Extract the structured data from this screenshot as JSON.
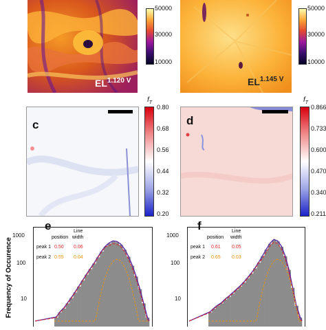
{
  "panel_a": {
    "el_base": "EL",
    "el_sup": "1.120 V"
  },
  "panel_b": {
    "el_base": "EL",
    "el_sup": "1.145 V"
  },
  "colorbar_top_left": {
    "ticks": [
      "50000",
      "30000",
      "10000"
    ]
  },
  "colorbar_top_right": {
    "ticks": [
      "50000",
      "30000",
      "10000"
    ]
  },
  "panel_c": {
    "letter": "c",
    "ft_base": "f",
    "ft_sub": "T",
    "ticks": [
      "0.80",
      "0.68",
      "0.56",
      "0.44",
      "0.32",
      "0.20"
    ]
  },
  "panel_d": {
    "letter": "d",
    "ft_base": "f",
    "ft_sub": "T",
    "ticks": [
      "0.866",
      "0.733",
      "0.600",
      "0.470",
      "0.340",
      "0.211"
    ]
  },
  "panel_e": {
    "letter": "e",
    "header_position": "position",
    "header_linewidth_1": "Line",
    "header_linewidth_2": "width",
    "rows": [
      {
        "label": "peak 1",
        "position": "0.50",
        "width": "0.06",
        "color": "#d62728"
      },
      {
        "label": "peak 2",
        "position": "0.55",
        "width": "0.04",
        "color": "#e8900c"
      }
    ],
    "y_ticks": [
      "1000",
      "100",
      "10"
    ],
    "ylabel": "Frequency of Occurence"
  },
  "panel_f": {
    "letter": "f",
    "header_position": "position",
    "header_linewidth_1": "Line",
    "header_linewidth_2": "width",
    "rows": [
      {
        "label": "peak 1",
        "position": "0.61",
        "width": "0.05",
        "color": "#d62728"
      },
      {
        "label": "peak 2",
        "position": "0.65",
        "width": "0.03",
        "color": "#e8900c"
      }
    ],
    "y_ticks": [
      "1000",
      "100",
      "10"
    ]
  },
  "chart_data": [
    {
      "type": "bar",
      "panel": "e",
      "yscale": "log",
      "ylabel": "Frequency of Occurence",
      "peaks": [
        {
          "name": "peak 1",
          "position": 0.5,
          "line_width": 0.06
        },
        {
          "name": "peak 2",
          "position": 0.55,
          "line_width": 0.04
        }
      ],
      "series": [
        {
          "values": [
            2,
            3,
            4,
            6,
            9,
            14,
            22,
            35,
            55,
            85,
            130,
            210,
            330,
            480,
            620,
            720,
            680,
            560,
            380,
            220,
            110,
            48,
            18,
            6,
            2
          ]
        }
      ]
    },
    {
      "type": "bar",
      "panel": "f",
      "yscale": "log",
      "peaks": [
        {
          "name": "peak 1",
          "position": 0.61,
          "line_width": 0.05
        },
        {
          "name": "peak 2",
          "position": 0.65,
          "line_width": 0.03
        }
      ],
      "series": [
        {
          "values": [
            3,
            4,
            5,
            6,
            8,
            10,
            13,
            17,
            22,
            30,
            42,
            60,
            90,
            140,
            230,
            380,
            600,
            800,
            720,
            480,
            230,
            80,
            20,
            5,
            2
          ]
        }
      ]
    }
  ]
}
